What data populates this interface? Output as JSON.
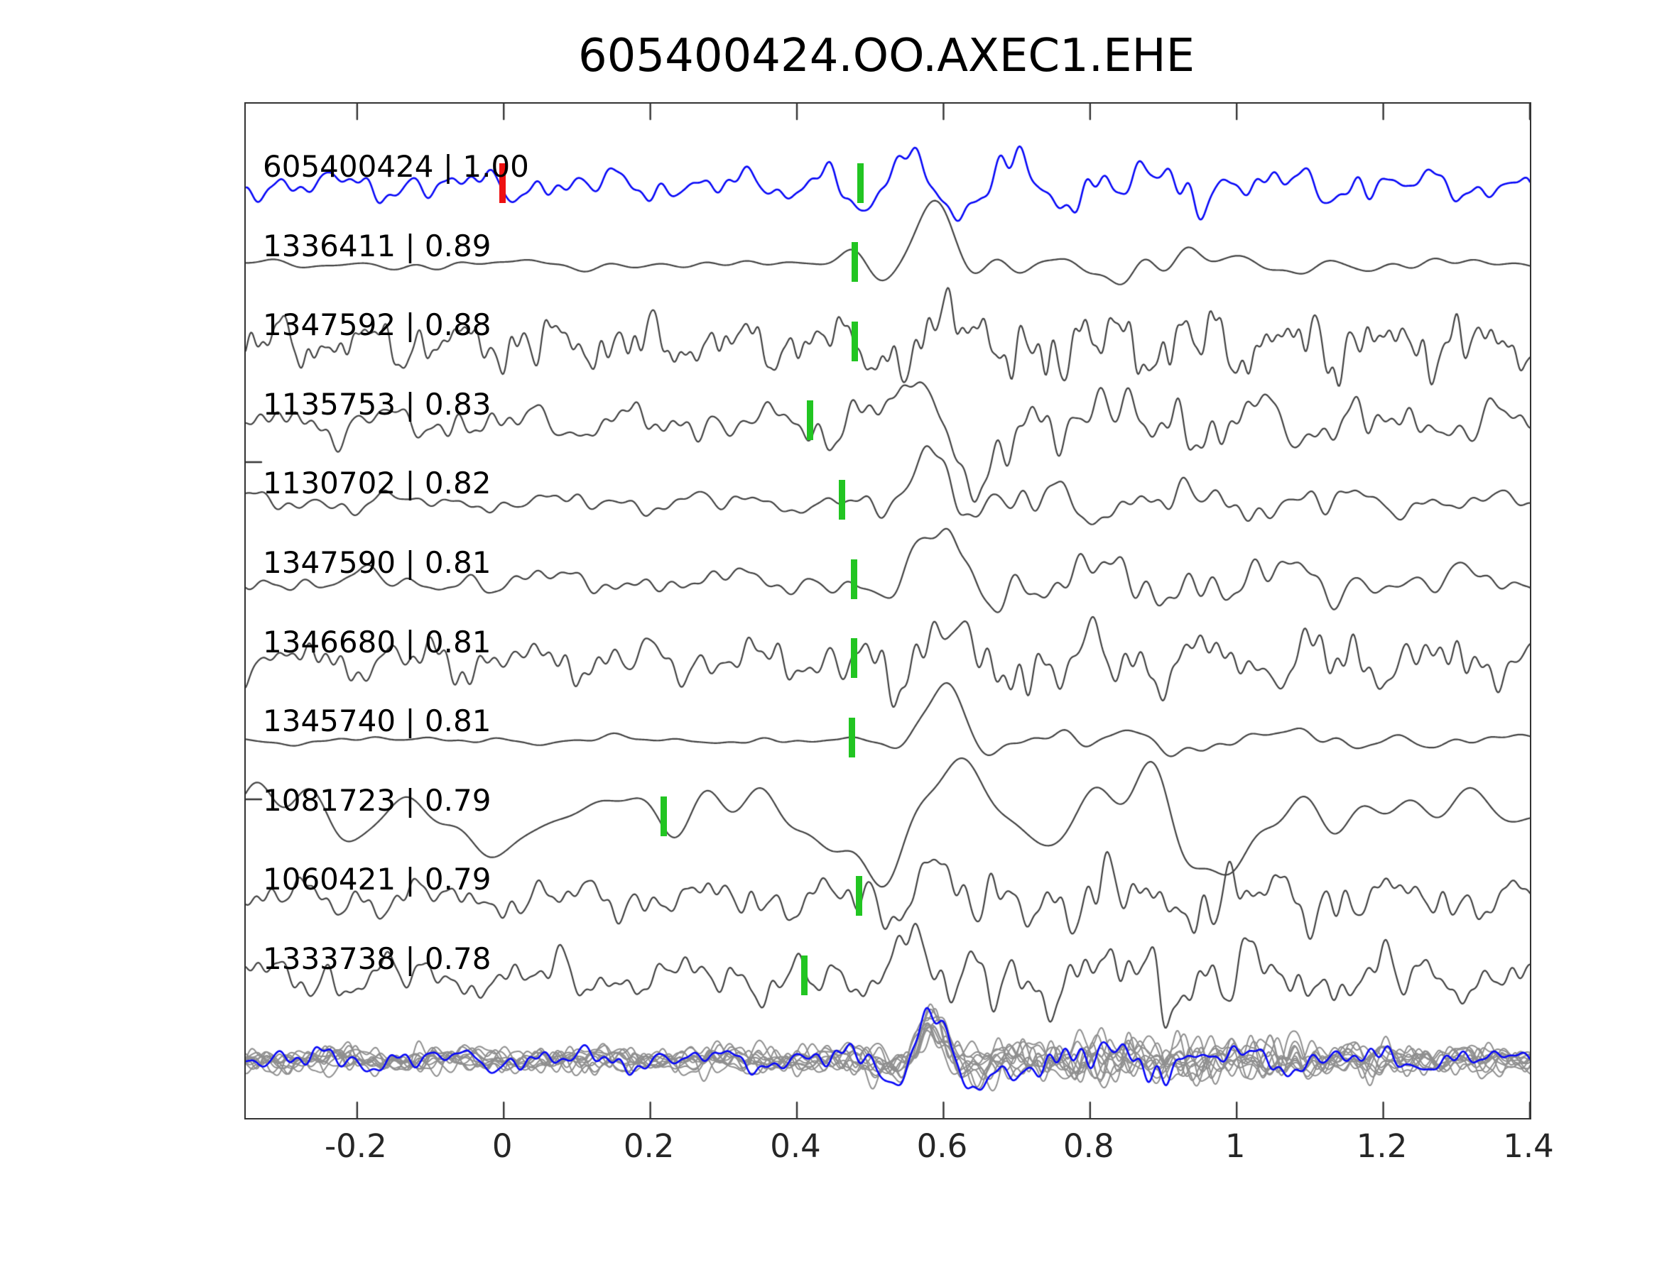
{
  "title": "605400424.OO.AXEC1.EHE",
  "colors": {
    "template_trace": "#0808f7",
    "match_trace": "#424242",
    "overlay_trace": "#8f8f8f",
    "overlay_template": "#0808f7",
    "pick_marker": "#22c522",
    "template_marker": "#ee1111",
    "frame": "#333333",
    "text": "#000000"
  },
  "chart_data": {
    "type": "line",
    "title": "605400424.OO.AXEC1.EHE",
    "xlabel": "",
    "ylabel": "",
    "grid": false,
    "legend": false,
    "x_axis": {
      "min": -0.352,
      "max": 1.4,
      "tick_values": [
        -0.2,
        0,
        0.2,
        0.4,
        0.6,
        0.8,
        1,
        1.2,
        1.4
      ],
      "tick_labels": [
        "-0.2",
        "0",
        "0.2",
        "0.4",
        "0.6",
        "0.8",
        "1",
        "1.2",
        "1.4"
      ]
    },
    "template_marker": {
      "trace_index": 0,
      "x": 0.0
    },
    "traces": [
      {
        "id": "605400424",
        "cc": "1.00",
        "label": "605400424 | 1.00",
        "pick_x": 0.489,
        "is_template": true,
        "gen": {
          "seed": 11,
          "noise_amp": 20,
          "noise_freq": 18,
          "events": [
            {
              "center": 0.56,
              "width": 0.13,
              "amp": 55,
              "freq": 7.5
            }
          ],
          "coda": {
            "center": 0.8,
            "width": 0.25,
            "gain": 0.9
          }
        }
      },
      {
        "id": "1336411",
        "cc": "0.89",
        "label": "1336411 | 0.89",
        "pick_x": 0.481,
        "is_template": false,
        "gen": {
          "seed": 22,
          "noise_amp": 7,
          "noise_freq": 10,
          "events": [
            {
              "center": 0.585,
              "width": 0.055,
              "amp": 85,
              "freq": 5.5
            },
            {
              "center": 0.47,
              "width": 0.05,
              "amp": 30,
              "freq": 6
            }
          ],
          "coda": {
            "center": 0.85,
            "width": 0.3,
            "gain": 2.2
          }
        }
      },
      {
        "id": "1347592",
        "cc": "0.88",
        "label": "1347592 | 0.88",
        "pick_x": 0.481,
        "is_template": false,
        "gen": {
          "seed": 33,
          "noise_amp": 34,
          "noise_freq": 26,
          "events": [
            {
              "center": 0.62,
              "width": 0.1,
              "amp": 60,
              "freq": 6
            }
          ],
          "coda": {
            "center": 0.9,
            "width": 0.3,
            "gain": 0.5
          }
        }
      },
      {
        "id": "1135753",
        "cc": "0.83",
        "label": "1135753 | 0.83",
        "pick_x": 0.42,
        "is_template": false,
        "gen": {
          "seed": 44,
          "noise_amp": 25,
          "noise_freq": 18,
          "events": [
            {
              "center": 0.66,
              "width": 0.12,
              "amp": -75,
              "freq": 3.6
            },
            {
              "center": 0.57,
              "width": 0.05,
              "amp": 45,
              "freq": 6
            }
          ],
          "coda": {
            "center": 0.85,
            "width": 0.3,
            "gain": 1.0
          }
        }
      },
      {
        "id": "1130702",
        "cc": "0.82",
        "label": "1130702 | 0.82",
        "pick_x": 0.463,
        "is_template": false,
        "gen": {
          "seed": 55,
          "noise_amp": 14,
          "noise_freq": 16,
          "events": [
            {
              "center": 0.585,
              "width": 0.06,
              "amp": 80,
              "freq": 5.5
            }
          ],
          "coda": {
            "center": 0.85,
            "width": 0.3,
            "gain": 1.3
          }
        }
      },
      {
        "id": "1347590",
        "cc": "0.81",
        "label": "1347590 | 0.81",
        "pick_x": 0.48,
        "is_template": false,
        "gen": {
          "seed": 66,
          "noise_amp": 17,
          "noise_freq": 15,
          "events": [
            {
              "center": 0.6,
              "width": 0.07,
              "amp": 72,
              "freq": 5
            }
          ],
          "coda": {
            "center": 0.9,
            "width": 0.3,
            "gain": 1.4
          }
        }
      },
      {
        "id": "1346680",
        "cc": "0.81",
        "label": "1346680 | 0.81",
        "pick_x": 0.48,
        "is_template": false,
        "gen": {
          "seed": 77,
          "noise_amp": 30,
          "noise_freq": 22,
          "events": [
            {
              "center": 0.6,
              "width": 0.09,
              "amp": 62,
              "freq": 6
            }
          ],
          "coda": {
            "center": 0.9,
            "width": 0.3,
            "gain": 0.7
          }
        }
      },
      {
        "id": "1345740",
        "cc": "0.81",
        "label": "1345740 | 0.81",
        "pick_x": 0.477,
        "is_template": false,
        "gen": {
          "seed": 88,
          "noise_amp": 6,
          "noise_freq": 10,
          "events": [
            {
              "center": 0.6,
              "width": 0.07,
              "amp": 82,
              "freq": 4.8
            }
          ],
          "coda": {
            "center": 0.9,
            "width": 0.35,
            "gain": 2.5
          }
        }
      },
      {
        "id": "1081723",
        "cc": "0.79",
        "label": "1081723 | 0.79",
        "pick_x": 0.22,
        "is_template": false,
        "gen": {
          "seed": 99,
          "noise_amp": 45,
          "noise_freq": 7,
          "events": [
            {
              "center": 0.6,
              "width": 0.25,
              "amp": 55,
              "freq": 4
            }
          ],
          "coda": {
            "center": 0.8,
            "width": 0.4,
            "gain": 0.5
          }
        }
      },
      {
        "id": "1060421",
        "cc": "0.79",
        "label": "1060421 | 0.79",
        "pick_x": 0.487,
        "is_template": false,
        "gen": {
          "seed": 110,
          "noise_amp": 26,
          "noise_freq": 20,
          "events": [
            {
              "center": 0.585,
              "width": 0.07,
              "amp": 62,
              "freq": 6.5
            }
          ],
          "coda": {
            "center": 0.9,
            "width": 0.3,
            "gain": 0.8
          }
        }
      },
      {
        "id": "1333738",
        "cc": "0.78",
        "label": "1333738 | 0.78",
        "pick_x": 0.412,
        "is_template": false,
        "gen": {
          "seed": 121,
          "noise_amp": 30,
          "noise_freq": 20,
          "events": [
            {
              "center": 0.55,
              "width": 0.08,
              "amp": 75,
              "freq": 5.5
            }
          ],
          "coda": {
            "center": 0.85,
            "width": 0.3,
            "gain": 0.9
          }
        }
      }
    ],
    "overlay_stack": {
      "gray_trace_count": 11,
      "gray_gen": {
        "noise_amp": 13,
        "noise_freq": 22,
        "event_center": 0.585,
        "event_width": 0.05,
        "event_amp_base": 38,
        "event_freq": 7,
        "coda_gain": 0.8
      },
      "template_gen": {
        "seed": 500,
        "noise_amp": 16,
        "noise_freq": 20,
        "events": [
          {
            "center": 0.585,
            "width": 0.055,
            "amp": 60,
            "freq": 7
          },
          {
            "center": 0.65,
            "width": 0.05,
            "amp": -40,
            "freq": 5
          }
        ],
        "coda": {
          "center": 0.8,
          "width": 0.3,
          "gain": 1.0
        }
      }
    }
  }
}
